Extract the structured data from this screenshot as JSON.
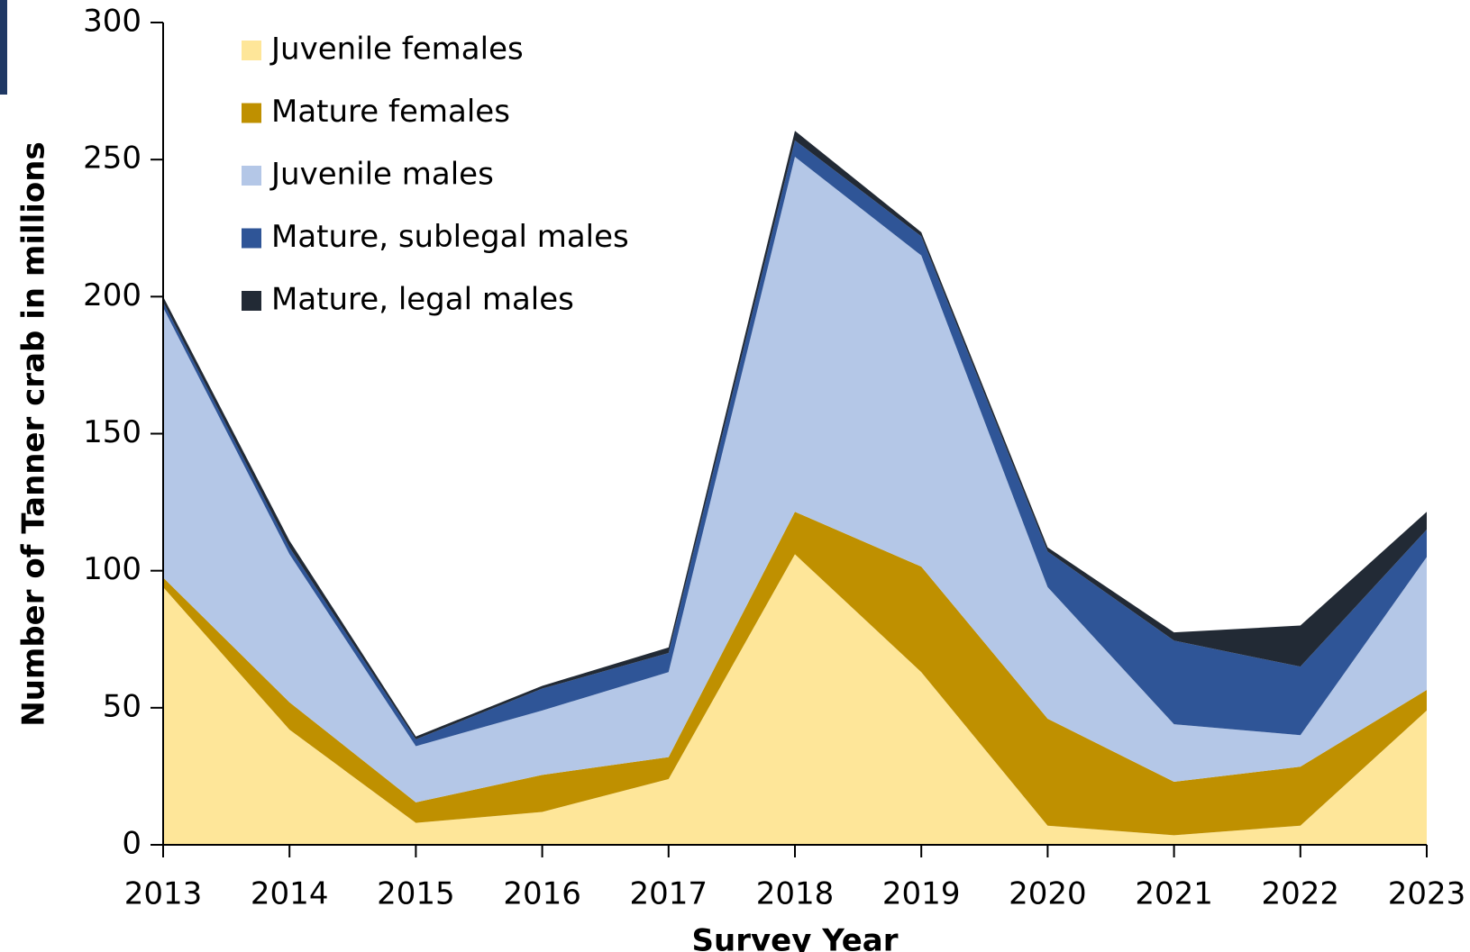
{
  "chart_data": {
    "type": "stacked_area",
    "xlabel": "Survey Year",
    "ylabel": "Number of Tanner crab in millions",
    "x": [
      2013,
      2014,
      2015,
      2016,
      2017,
      2018,
      2019,
      2020,
      2021,
      2022,
      2023
    ],
    "xlim": [
      2013,
      2023
    ],
    "xticks": [
      2013,
      2014,
      2015,
      2016,
      2017,
      2018,
      2019,
      2020,
      2021,
      2022,
      2023
    ],
    "ylim": [
      0,
      300
    ],
    "yticks": [
      0,
      50,
      100,
      150,
      200,
      250,
      300
    ],
    "grid": false,
    "legend": "upper left",
    "series": [
      {
        "name": "Juvenile females",
        "color": "#fee699",
        "values": [
          94,
          42,
          8,
          12,
          24,
          106,
          63,
          7,
          3.5,
          7,
          49
        ]
      },
      {
        "name": "Mature females",
        "color": "#bf9000",
        "values": [
          3.5,
          10,
          7.5,
          13.5,
          8,
          15.5,
          38.5,
          39,
          19.5,
          21.5,
          7.5
        ]
      },
      {
        "name": "Juvenile males",
        "color": "#b4c7e7",
        "values": [
          98.5,
          54,
          20.5,
          23.5,
          31,
          129.5,
          113.5,
          48,
          21,
          11.5,
          48.5
        ]
      },
      {
        "name": "Mature, sublegal males",
        "color": "#2f5597",
        "values": [
          2,
          2.5,
          2.5,
          8,
          7,
          6,
          7,
          13,
          30.5,
          25,
          10
        ]
      },
      {
        "name": "Mature, legal males",
        "color": "#222a35",
        "values": [
          2,
          2.5,
          1,
          1,
          2,
          3.5,
          1.5,
          1.5,
          3,
          15,
          6.5
        ]
      }
    ]
  }
}
